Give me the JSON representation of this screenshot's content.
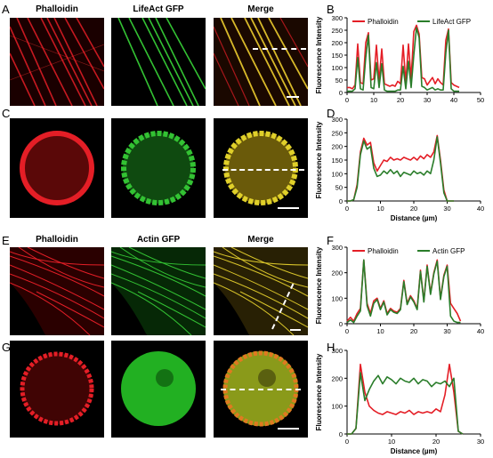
{
  "panel_letters": {
    "a": "A",
    "b": "B",
    "c": "C",
    "d": "D",
    "e": "E",
    "f": "F",
    "g": "G",
    "h": "H"
  },
  "top_columns": [
    "Phalloidin",
    "LifeAct GFP",
    "Merge"
  ],
  "bottom_columns": [
    "Phalloidin",
    "Actin GFP",
    "Merge"
  ],
  "colors": {
    "red": "#e41e26",
    "green": "#2a7d2a",
    "merge": "#d8b92a"
  },
  "chart_data": [
    {
      "id": "B",
      "type": "line",
      "ylabel": "Fluorescence Intensity",
      "xlabel": "",
      "xlim": [
        0,
        50
      ],
      "ylim": [
        0,
        300
      ],
      "xticks": [
        0,
        10,
        20,
        30,
        40,
        50
      ],
      "yticks": [
        0,
        50,
        100,
        150,
        200,
        250,
        300
      ],
      "legend": {
        "placement": "top",
        "entries": [
          "Phalloidin",
          "LifeAct GFP"
        ]
      },
      "series": [
        {
          "name": "Phalloidin",
          "color": "#e41e26",
          "x": [
            0,
            1,
            2,
            3,
            4,
            5,
            6,
            7,
            8,
            9,
            10,
            11,
            12,
            13,
            14,
            15,
            16,
            17,
            18,
            19,
            20,
            21,
            22,
            23,
            24,
            25,
            26,
            27,
            28,
            29,
            30,
            31,
            32,
            33,
            34,
            35,
            36,
            37,
            38,
            39,
            40,
            41,
            42
          ],
          "y": [
            20,
            20,
            15,
            30,
            195,
            40,
            35,
            200,
            240,
            50,
            55,
            190,
            45,
            175,
            35,
            30,
            25,
            30,
            25,
            45,
            35,
            190,
            40,
            195,
            55,
            245,
            270,
            235,
            60,
            55,
            30,
            45,
            60,
            35,
            55,
            40,
            30,
            210,
            255,
            40,
            30,
            25,
            20
          ]
        },
        {
          "name": "LifeAct GFP",
          "color": "#2a7d2a",
          "x": [
            0,
            1,
            2,
            3,
            4,
            5,
            6,
            7,
            8,
            9,
            10,
            11,
            12,
            13,
            14,
            15,
            16,
            17,
            18,
            19,
            20,
            21,
            22,
            23,
            24,
            25,
            26,
            27,
            28,
            29,
            30,
            31,
            32,
            33,
            34,
            35,
            36,
            37,
            38,
            39,
            40,
            41,
            42
          ],
          "y": [
            5,
            5,
            5,
            15,
            140,
            15,
            10,
            140,
            230,
            20,
            15,
            120,
            20,
            115,
            10,
            5,
            5,
            5,
            5,
            10,
            10,
            105,
            15,
            125,
            20,
            150,
            260,
            220,
            25,
            20,
            10,
            15,
            20,
            10,
            15,
            10,
            10,
            160,
            250,
            15,
            5,
            5,
            5
          ]
        }
      ]
    },
    {
      "id": "D",
      "type": "line",
      "ylabel": "Fluorescence Intensity",
      "xlabel": "Distance (µm)",
      "xlim": [
        0,
        40
      ],
      "ylim": [
        0,
        300
      ],
      "xticks": [
        0,
        10,
        20,
        30,
        40
      ],
      "yticks": [
        0,
        50,
        100,
        150,
        200,
        250,
        300
      ],
      "legend": null,
      "series": [
        {
          "name": "",
          "color": "#e41e26",
          "x": [
            0,
            1,
            2,
            3,
            4,
            5,
            6,
            7,
            8,
            9,
            10,
            11,
            12,
            13,
            14,
            15,
            16,
            17,
            18,
            19,
            20,
            21,
            22,
            23,
            24,
            25,
            26,
            27,
            28,
            29,
            30,
            31,
            32
          ],
          "y": [
            0,
            0,
            5,
            60,
            180,
            230,
            205,
            215,
            140,
            110,
            130,
            150,
            145,
            160,
            150,
            155,
            150,
            160,
            155,
            150,
            160,
            150,
            165,
            155,
            170,
            160,
            180,
            240,
            150,
            40,
            0,
            0,
            0
          ]
        },
        {
          "name": "",
          "color": "#2a7d2a",
          "x": [
            0,
            1,
            2,
            3,
            4,
            5,
            6,
            7,
            8,
            9,
            10,
            11,
            12,
            13,
            14,
            15,
            16,
            17,
            18,
            19,
            20,
            21,
            22,
            23,
            24,
            25,
            26,
            27,
            28,
            29,
            30,
            31,
            32
          ],
          "y": [
            0,
            0,
            5,
            50,
            170,
            220,
            190,
            200,
            120,
            90,
            95,
            110,
            100,
            115,
            100,
            110,
            90,
            105,
            100,
            95,
            110,
            100,
            105,
            95,
            110,
            100,
            150,
            235,
            140,
            30,
            0,
            0,
            0
          ]
        }
      ]
    },
    {
      "id": "F",
      "type": "line",
      "ylabel": "Fluorescence Intensity",
      "xlabel": "",
      "xlim": [
        0,
        40
      ],
      "ylim": [
        0,
        300
      ],
      "xticks": [
        0,
        10,
        20,
        30,
        40
      ],
      "yticks": [
        0,
        100,
        200,
        300
      ],
      "legend": {
        "placement": "top",
        "entries": [
          "Phalloidin",
          "Actin GFP"
        ]
      },
      "series": [
        {
          "name": "Phalloidin",
          "color": "#e41e26",
          "x": [
            0,
            1,
            2,
            3,
            4,
            5,
            6,
            7,
            8,
            9,
            10,
            11,
            12,
            13,
            14,
            15,
            16,
            17,
            18,
            19,
            20,
            21,
            22,
            23,
            24,
            25,
            26,
            27,
            28,
            29,
            30,
            31,
            32,
            33,
            34
          ],
          "y": [
            10,
            25,
            10,
            40,
            60,
            250,
            80,
            40,
            90,
            100,
            60,
            90,
            40,
            60,
            50,
            45,
            60,
            170,
            80,
            110,
            90,
            60,
            210,
            90,
            230,
            120,
            200,
            250,
            100,
            190,
            230,
            80,
            60,
            40,
            10
          ]
        },
        {
          "name": "Actin GFP",
          "color": "#2a7d2a",
          "x": [
            0,
            1,
            2,
            3,
            4,
            5,
            6,
            7,
            8,
            9,
            10,
            11,
            12,
            13,
            14,
            15,
            16,
            17,
            18,
            19,
            20,
            21,
            22,
            23,
            24,
            25,
            26,
            27,
            28,
            29,
            30,
            31,
            32,
            33,
            34
          ],
          "y": [
            5,
            15,
            5,
            30,
            50,
            250,
            70,
            30,
            80,
            95,
            55,
            85,
            35,
            55,
            45,
            40,
            55,
            165,
            75,
            105,
            85,
            55,
            205,
            85,
            225,
            115,
            195,
            245,
            95,
            185,
            225,
            30,
            10,
            5,
            5
          ]
        }
      ]
    },
    {
      "id": "H",
      "type": "line",
      "ylabel": "Fluorescence Intensity",
      "xlabel": "Distance (µm)",
      "xlim": [
        0,
        30
      ],
      "ylim": [
        0,
        300
      ],
      "xticks": [
        0,
        10,
        20,
        30
      ],
      "yticks": [
        0,
        100,
        200,
        300
      ],
      "legend": null,
      "series": [
        {
          "name": "",
          "color": "#e41e26",
          "x": [
            0,
            1,
            2,
            3,
            4,
            5,
            6,
            7,
            8,
            9,
            10,
            11,
            12,
            13,
            14,
            15,
            16,
            17,
            18,
            19,
            20,
            21,
            22,
            23,
            24,
            25,
            26
          ],
          "y": [
            0,
            0,
            20,
            250,
            150,
            100,
            85,
            75,
            70,
            80,
            75,
            70,
            80,
            75,
            85,
            70,
            80,
            75,
            80,
            75,
            90,
            80,
            140,
            250,
            150,
            10,
            0
          ]
        },
        {
          "name": "",
          "color": "#2a7d2a",
          "x": [
            0,
            1,
            2,
            3,
            4,
            5,
            6,
            7,
            8,
            9,
            10,
            11,
            12,
            13,
            14,
            15,
            16,
            17,
            18,
            19,
            20,
            21,
            22,
            23,
            24,
            25,
            26
          ],
          "y": [
            0,
            0,
            20,
            220,
            120,
            160,
            190,
            210,
            180,
            205,
            195,
            180,
            200,
            190,
            185,
            200,
            180,
            195,
            190,
            170,
            185,
            180,
            190,
            170,
            200,
            10,
            0
          ]
        }
      ]
    }
  ]
}
